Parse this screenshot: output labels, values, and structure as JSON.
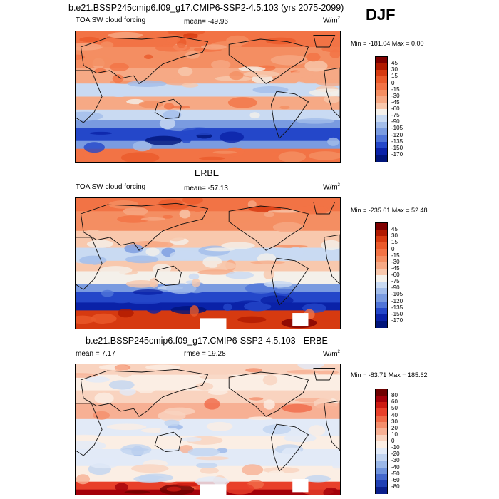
{
  "season": "DJF",
  "panels": [
    {
      "title": "b.e21.BSSP245cmip6.f09_g17.CMIP6-SSP2-4.5.103 (yrs 2075-2099)",
      "left_label": "TOA SW cloud forcing",
      "center_label": "mean= -49.96",
      "unit_base": "W/m",
      "unit_exp": "2",
      "minmax": "Min = -181.04 Max =   0.00"
    },
    {
      "title": "ERBE",
      "left_label": "TOA SW cloud forcing",
      "center_label": "mean= -57.13",
      "unit_base": "W/m",
      "unit_exp": "2",
      "minmax": "Min = -235.61 Max =  52.48"
    },
    {
      "title": "b.e21.BSSP245cmip6.f09_g17.CMIP6-SSP2-4.5.103 - ERBE",
      "left_label": "mean =   7.17",
      "center_label": "rmse =  19.28",
      "unit_base": "W/m",
      "unit_exp": "2",
      "minmax": "Min = -83.71 Max = 185.62"
    }
  ],
  "chart_data": [
    {
      "type": "heatmap",
      "title": "b.e21.BSSP245cmip6.f09_g17.CMIP6-SSP2-4.5.103 (yrs 2075-2099)",
      "variable": "TOA SW cloud forcing",
      "mean": -49.96,
      "min": -181.04,
      "max": 0.0,
      "unit": "W/m2",
      "colorbar_levels": [
        45,
        30,
        15,
        0,
        -15,
        -30,
        -45,
        -60,
        -75,
        -90,
        -105,
        -120,
        -135,
        -150,
        -170
      ],
      "colorbar_labels": [
        "45",
        "30",
        "15",
        "0",
        "-15",
        "-30",
        "-45",
        "-60",
        "-75",
        "-90",
        "-105",
        "-120",
        "-135",
        "-150",
        "-170"
      ],
      "colors": [
        "#7f0000",
        "#b01a00",
        "#d63a10",
        "#ea5a2a",
        "#f27345",
        "#f48e62",
        "#f6a985",
        "#f8c8ad",
        "#f4f0ea",
        "#c9daf2",
        "#a3bdea",
        "#7a9be0",
        "#4f74d8",
        "#2447c9",
        "#0a22a8",
        "#00147a"
      ]
    },
    {
      "type": "heatmap",
      "title": "ERBE",
      "variable": "TOA SW cloud forcing",
      "mean": -57.13,
      "min": -235.61,
      "max": 52.48,
      "unit": "W/m2",
      "colorbar_levels": [
        45,
        30,
        15,
        0,
        -15,
        -30,
        -45,
        -60,
        -75,
        -90,
        -105,
        -120,
        -135,
        -150,
        -170
      ],
      "colorbar_labels": [
        "45",
        "30",
        "15",
        "0",
        "-15",
        "-30",
        "-45",
        "-60",
        "-75",
        "-90",
        "-105",
        "-120",
        "-135",
        "-150",
        "-170"
      ],
      "colors": [
        "#7f0000",
        "#b01a00",
        "#d63a10",
        "#ea5a2a",
        "#f27345",
        "#f48e62",
        "#f6a985",
        "#f8c8ad",
        "#f4f0ea",
        "#c9daf2",
        "#a3bdea",
        "#7a9be0",
        "#4f74d8",
        "#2447c9",
        "#0a22a8",
        "#00147a"
      ]
    },
    {
      "type": "heatmap",
      "title": "b.e21.BSSP245cmip6.f09_g17.CMIP6-SSP2-4.5.103 - ERBE",
      "mean": 7.17,
      "rmse": 19.28,
      "min": -83.71,
      "max": 185.62,
      "unit": "W/m2",
      "colorbar_levels": [
        80,
        60,
        50,
        40,
        30,
        20,
        10,
        0,
        -10,
        -20,
        -30,
        -40,
        -50,
        -60,
        -80
      ],
      "colorbar_labels": [
        "80",
        "60",
        "50",
        "40",
        "30",
        "20",
        "10",
        "0",
        "-10",
        "-20",
        "-30",
        "-40",
        "-50",
        "-60",
        "-80"
      ],
      "colors": [
        "#6e0000",
        "#a3000a",
        "#cc1a12",
        "#e8402a",
        "#f06a48",
        "#f48e6c",
        "#f7b094",
        "#f9d3bf",
        "#fbeee4",
        "#e2eaf7",
        "#c2d4f0",
        "#9ab7e8",
        "#6f93dc",
        "#4468cc",
        "#2040b4",
        "#0a1f8c"
      ]
    }
  ]
}
